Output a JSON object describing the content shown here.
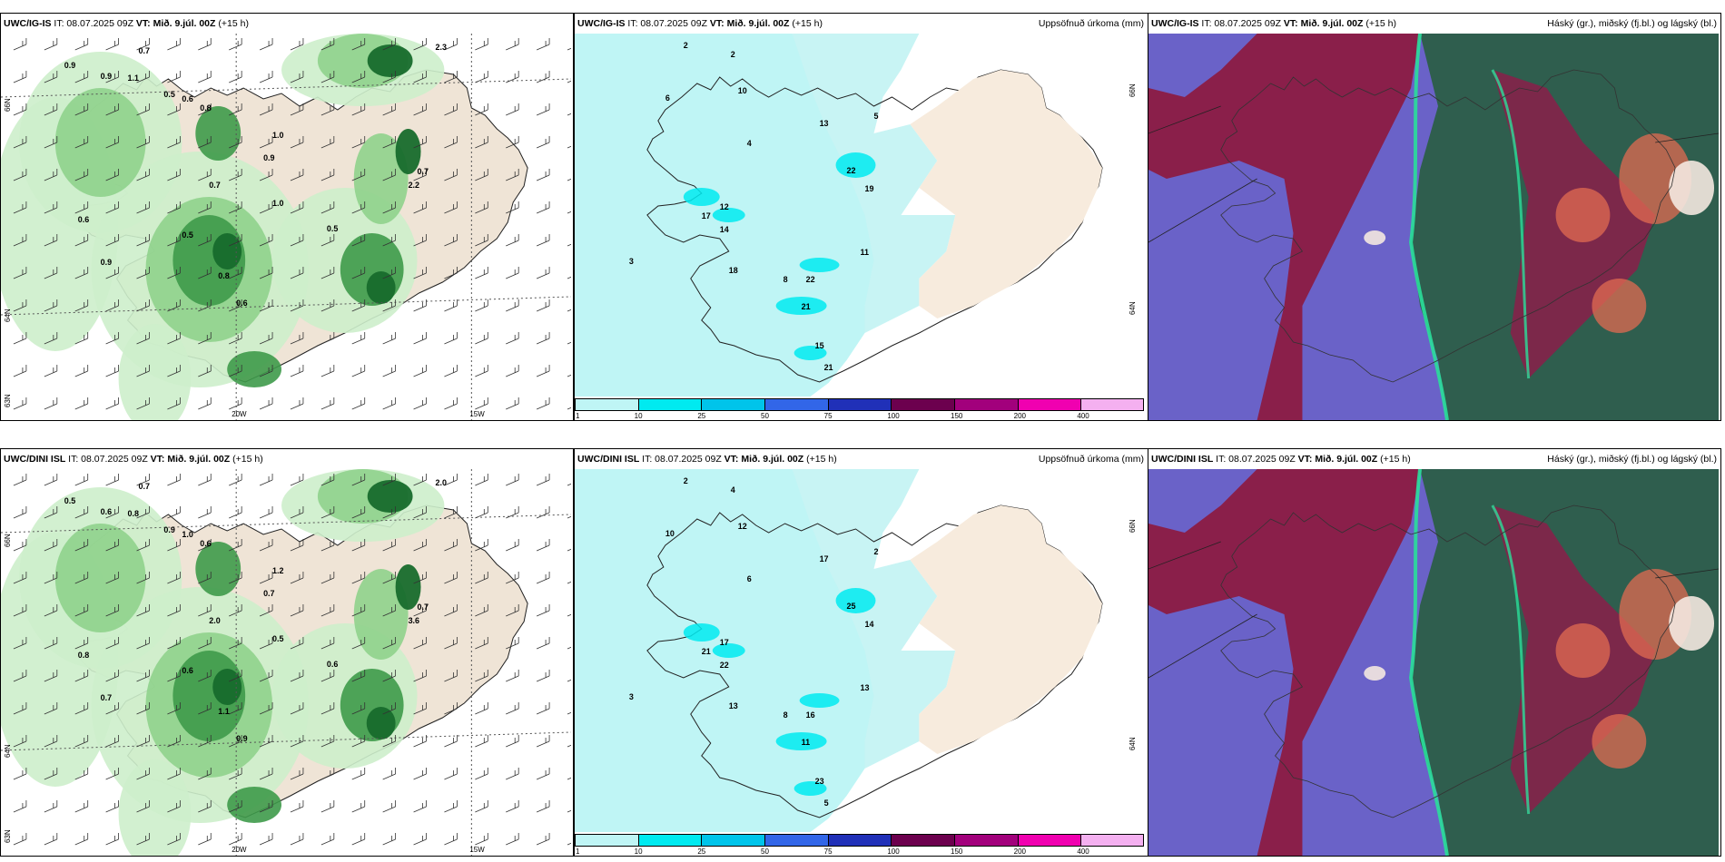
{
  "panels": [
    {
      "model": "UWC/IG-IS",
      "it": "IT: 08.07.2025 09Z",
      "vt_label": "VT:",
      "vt": "Mið. 9.júl. 00Z",
      "offset": "(+15 h)",
      "right": ""
    },
    {
      "model": "UWC/IG-IS",
      "it": "IT: 08.07.2025 09Z",
      "vt_label": "VT:",
      "vt": "Mið. 9.júl. 00Z",
      "offset": "(+15 h)",
      "right": "Uppsöfnuð úrkoma (mm)"
    },
    {
      "model": "UWC/IG-IS",
      "it": "IT: 08.07.2025 09Z",
      "vt_label": "VT:",
      "vt": "Mið. 9.júl. 00Z",
      "offset": "(+15 h)",
      "right": "Háský (gr.), miðský (fj.bl.) og lágský (bl.)"
    },
    {
      "model": "UWC/DINI ISL",
      "it": "IT: 08.07.2025 09Z",
      "vt_label": "VT:",
      "vt": "Mið. 9.júl. 00Z",
      "offset": "(+15 h)",
      "right": ""
    },
    {
      "model": "UWC/DINI ISL",
      "it": "IT: 08.07.2025 09Z",
      "vt_label": "VT:",
      "vt": "Mið. 9.júl. 00Z",
      "offset": "(+15 h)",
      "right": "Uppsöfnuð úrkoma (mm)"
    },
    {
      "model": "UWC/DINI ISL",
      "it": "IT: 08.07.2025 09Z",
      "vt_label": "VT:",
      "vt": "Mið. 9.júl. 00Z",
      "offset": "(+15 h)",
      "right": "Háský (gr.), miðský (fj.bl.) og lágský (bl.)"
    }
  ],
  "axes": {
    "lat_66": "66N",
    "lat_64": "64N",
    "lat_63": "63N",
    "lon_20": "20W",
    "lon_15": "15W"
  },
  "colorbar": {
    "labels": [
      "1",
      "10",
      "25",
      "50",
      "75",
      "100",
      "150",
      "200",
      "400"
    ],
    "colors": [
      "#bff5f5",
      "#00eaf0",
      "#00c4ea",
      "#3266e8",
      "#2030b8",
      "#6c004e",
      "#a2007c",
      "#f000b0",
      "#f4b0f0"
    ]
  },
  "precip_values_top": [
    {
      "v": "2"
    },
    {
      "v": "2"
    },
    {
      "v": "3"
    },
    {
      "v": "4"
    },
    {
      "v": "6"
    },
    {
      "v": "10"
    },
    {
      "v": "13"
    },
    {
      "v": "22"
    },
    {
      "v": "19"
    },
    {
      "v": "11"
    },
    {
      "v": "12"
    },
    {
      "v": "17"
    },
    {
      "v": "14"
    },
    {
      "v": "22"
    },
    {
      "v": "21"
    },
    {
      "v": "18"
    },
    {
      "v": "15"
    },
    {
      "v": "21"
    },
    {
      "v": "8"
    },
    {
      "v": "5"
    }
  ],
  "precip_values_bottom": [
    {
      "v": "2"
    },
    {
      "v": "4"
    },
    {
      "v": "3"
    },
    {
      "v": "6"
    },
    {
      "v": "10"
    },
    {
      "v": "12"
    },
    {
      "v": "17"
    },
    {
      "v": "25"
    },
    {
      "v": "14"
    },
    {
      "v": "13"
    },
    {
      "v": "17"
    },
    {
      "v": "21"
    },
    {
      "v": "22"
    },
    {
      "v": "16"
    },
    {
      "v": "11"
    },
    {
      "v": "13"
    },
    {
      "v": "23"
    },
    {
      "v": "5"
    },
    {
      "v": "8"
    },
    {
      "v": "2"
    }
  ],
  "cloud_values_top": [
    {
      "v": "0.9"
    },
    {
      "v": "0.7"
    },
    {
      "v": "0.9"
    },
    {
      "v": "1.1"
    },
    {
      "v": "0.6"
    },
    {
      "v": "0.5"
    },
    {
      "v": "0.8"
    },
    {
      "v": "1.0"
    },
    {
      "v": "0.9"
    },
    {
      "v": "0.7"
    },
    {
      "v": "0.6"
    },
    {
      "v": "0.5"
    },
    {
      "v": "1.0"
    },
    {
      "v": "0.8"
    },
    {
      "v": "0.9"
    },
    {
      "v": "0.6"
    },
    {
      "v": "2.2"
    },
    {
      "v": "0.7"
    },
    {
      "v": "0.5"
    },
    {
      "v": "2.3"
    }
  ],
  "cloud_values_bottom": [
    {
      "v": "0.5"
    },
    {
      "v": "0.7"
    },
    {
      "v": "0.6"
    },
    {
      "v": "0.8"
    },
    {
      "v": "1.0"
    },
    {
      "v": "0.9"
    },
    {
      "v": "0.6"
    },
    {
      "v": "1.2"
    },
    {
      "v": "0.7"
    },
    {
      "v": "2.0"
    },
    {
      "v": "0.8"
    },
    {
      "v": "0.6"
    },
    {
      "v": "0.5"
    },
    {
      "v": "1.1"
    },
    {
      "v": "0.7"
    },
    {
      "v": "0.9"
    },
    {
      "v": "3.6"
    },
    {
      "v": "0.7"
    },
    {
      "v": "0.6"
    },
    {
      "v": "2.0"
    }
  ]
}
